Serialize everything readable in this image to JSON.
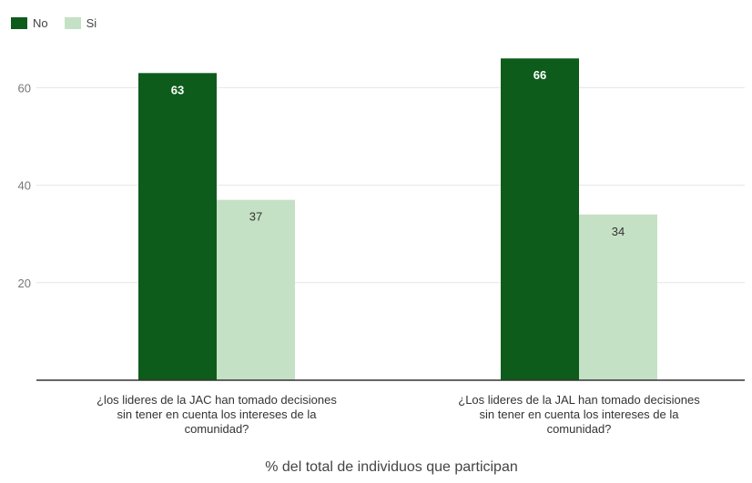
{
  "chart_data": {
    "type": "bar",
    "categories": [
      [
        "¿los lideres de la JAC han tomado decisiones",
        "sin tener en cuenta los intereses de la",
        "comunidad?"
      ],
      [
        "¿Los lideres de la JAL han tomado decisiones",
        "sin tener en cuenta los intereses de la",
        "comunidad?"
      ]
    ],
    "series": [
      {
        "name": "No",
        "values": [
          63,
          66
        ],
        "color": "#0d5c1b",
        "label_color": "#ffffff"
      },
      {
        "name": "Si",
        "values": [
          37,
          34
        ],
        "color": "#c5e1c5",
        "label_color": "#333333"
      }
    ],
    "xlabel": "% del total de individuos que participan",
    "ylabel": "",
    "yticks": [
      20,
      40,
      60
    ],
    "ylim": [
      0,
      70
    ],
    "grid": true,
    "legend": "top-left"
  }
}
